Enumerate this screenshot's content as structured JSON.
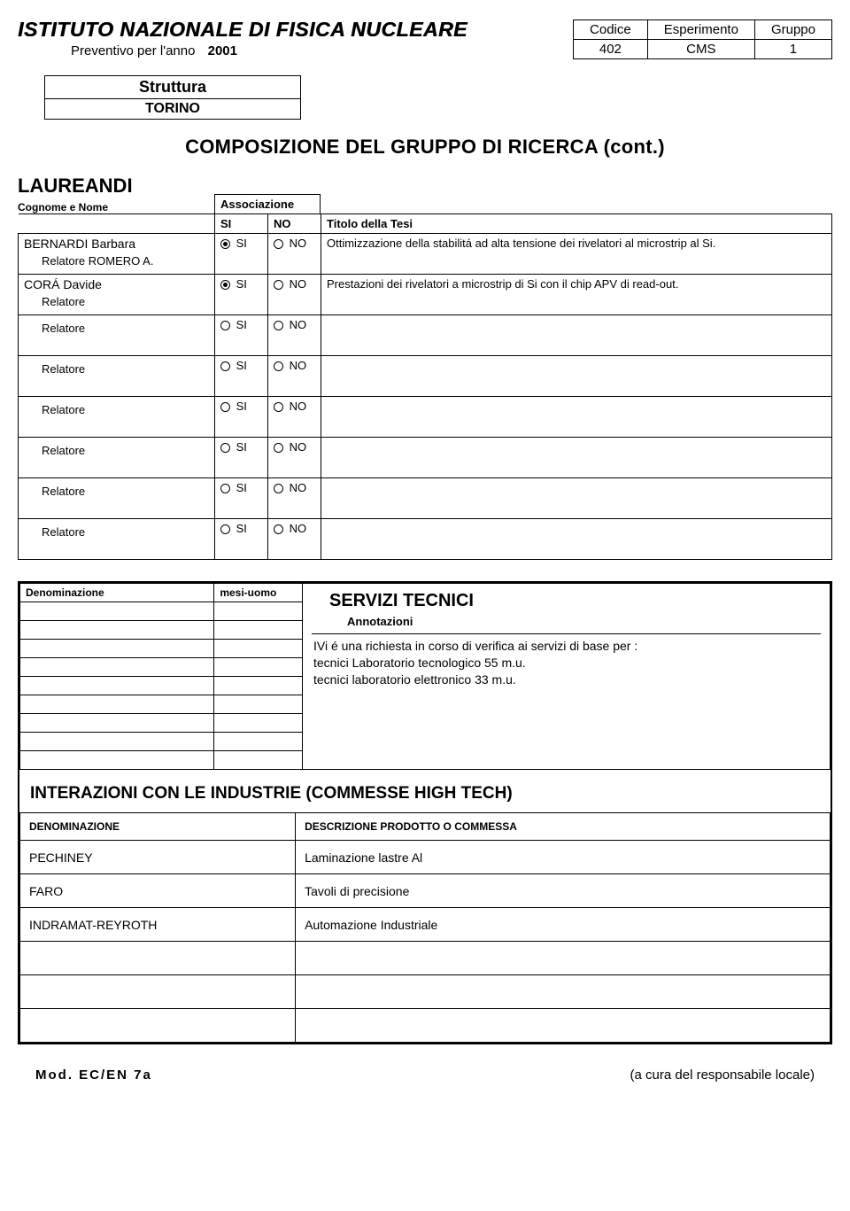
{
  "header": {
    "org": "ISTITUTO NAZIONALE DI FISICA NUCLEARE",
    "subtitle": "Preventivo per l'anno",
    "year": "2001",
    "info_headers": {
      "codice": "Codice",
      "esperimento": "Esperimento",
      "gruppo": "Gruppo"
    },
    "info_values": {
      "codice": "402",
      "esperimento": "CMS",
      "gruppo": "1"
    }
  },
  "struttura": {
    "label": "Struttura",
    "value": "TORINO"
  },
  "section_title": "COMPOSIZIONE DEL GRUPPO DI RICERCA (cont.)",
  "laureandi": {
    "title": "LAUREANDI",
    "subtitle": "Cognome e Nome",
    "assoc_label": "Associazione",
    "col_si": "SI",
    "col_no": "NO",
    "col_thesis": "Titolo della Tesi",
    "rows": [
      {
        "name": "BERNARDI Barbara",
        "relatore": "Relatore ROMERO A.",
        "si_checked": true,
        "thesis": "Ottimizzazione della stabilitá ad alta tensione dei rivelatori al microstrip al Si."
      },
      {
        "name": "CORÁ Davide",
        "relatore": "Relatore",
        "si_checked": true,
        "thesis": "Prestazioni dei rivelatori a microstrip di Si con il chip APV di read-out."
      },
      {
        "name": "",
        "relatore": "Relatore",
        "si_checked": false,
        "thesis": ""
      },
      {
        "name": "",
        "relatore": "Relatore",
        "si_checked": false,
        "thesis": ""
      },
      {
        "name": "",
        "relatore": "Relatore",
        "si_checked": false,
        "thesis": ""
      },
      {
        "name": "",
        "relatore": "Relatore",
        "si_checked": false,
        "thesis": ""
      },
      {
        "name": "",
        "relatore": "Relatore",
        "si_checked": false,
        "thesis": ""
      },
      {
        "name": "",
        "relatore": "Relatore",
        "si_checked": false,
        "thesis": ""
      }
    ]
  },
  "servizi": {
    "denom_header": "Denominazione",
    "mesi_header": "mesi-uomo",
    "empty_row_count": 9,
    "title": "SERVIZI TECNICI",
    "annot_label": "Annotazioni",
    "annot_body_1": "IVi é una richiesta in corso di verifica ai servizi di base per :",
    "annot_body_2": "tecnici Laboratorio tecnologico 55 m.u.",
    "annot_body_3": "tecnici laboratorio elettronico  33 m.u."
  },
  "interazioni": {
    "title": "INTERAZIONI CON LE INDUSTRIE (COMMESSE HIGH TECH)",
    "col_denom": "DENOMINAZIONE",
    "col_desc": "DESCRIZIONE PRODOTTO O COMMESSA",
    "rows": [
      {
        "denom": "PECHINEY",
        "desc": "Laminazione lastre Al"
      },
      {
        "denom": "FARO",
        "desc": "Tavoli di precisione"
      },
      {
        "denom": "INDRAMAT-REYROTH",
        "desc": "Automazione Industriale"
      },
      {
        "denom": "",
        "desc": ""
      },
      {
        "denom": "",
        "desc": ""
      },
      {
        "denom": "",
        "desc": ""
      }
    ]
  },
  "footer": {
    "left": "Mod. EC/EN 7a",
    "right": "(a cura del responsabile locale)"
  }
}
